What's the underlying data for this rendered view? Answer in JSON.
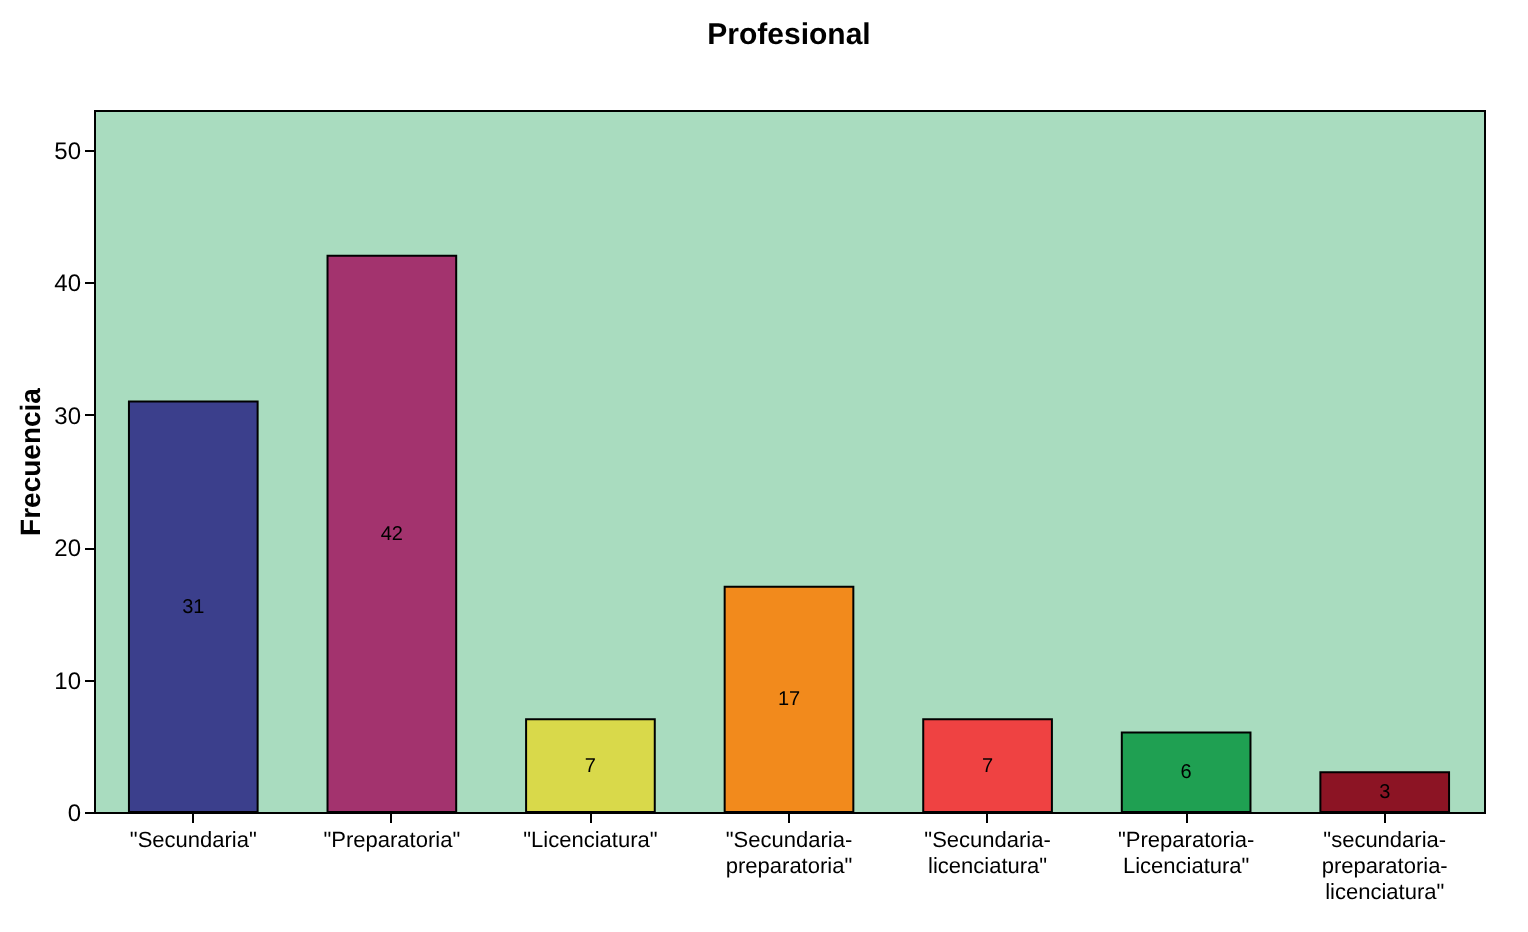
{
  "chart_data": {
    "type": "bar",
    "title": "Profesional",
    "ylabel": "Frecuencia",
    "categories": [
      "\"Secundaria\"",
      "\"Preparatoria\"",
      "\"Licenciatura\"",
      "\"Secundaria-preparatoria\"",
      "\"Secundaria-licenciatura\"",
      "\"Preparatoria-Licenciatura\"",
      "\"secundaria-preparatoria-licenciatura\""
    ],
    "values": [
      31,
      42,
      7,
      17,
      7,
      6,
      3
    ],
    "colors": [
      "#3b3f8c",
      "#a3336e",
      "#d9d94a",
      "#f28a1c",
      "#ef4242",
      "#1fa052",
      "#8c1424"
    ],
    "ylim": [
      0,
      53
    ],
    "yticks": [
      0,
      10,
      20,
      30,
      40,
      50
    ],
    "data_labels": true
  }
}
